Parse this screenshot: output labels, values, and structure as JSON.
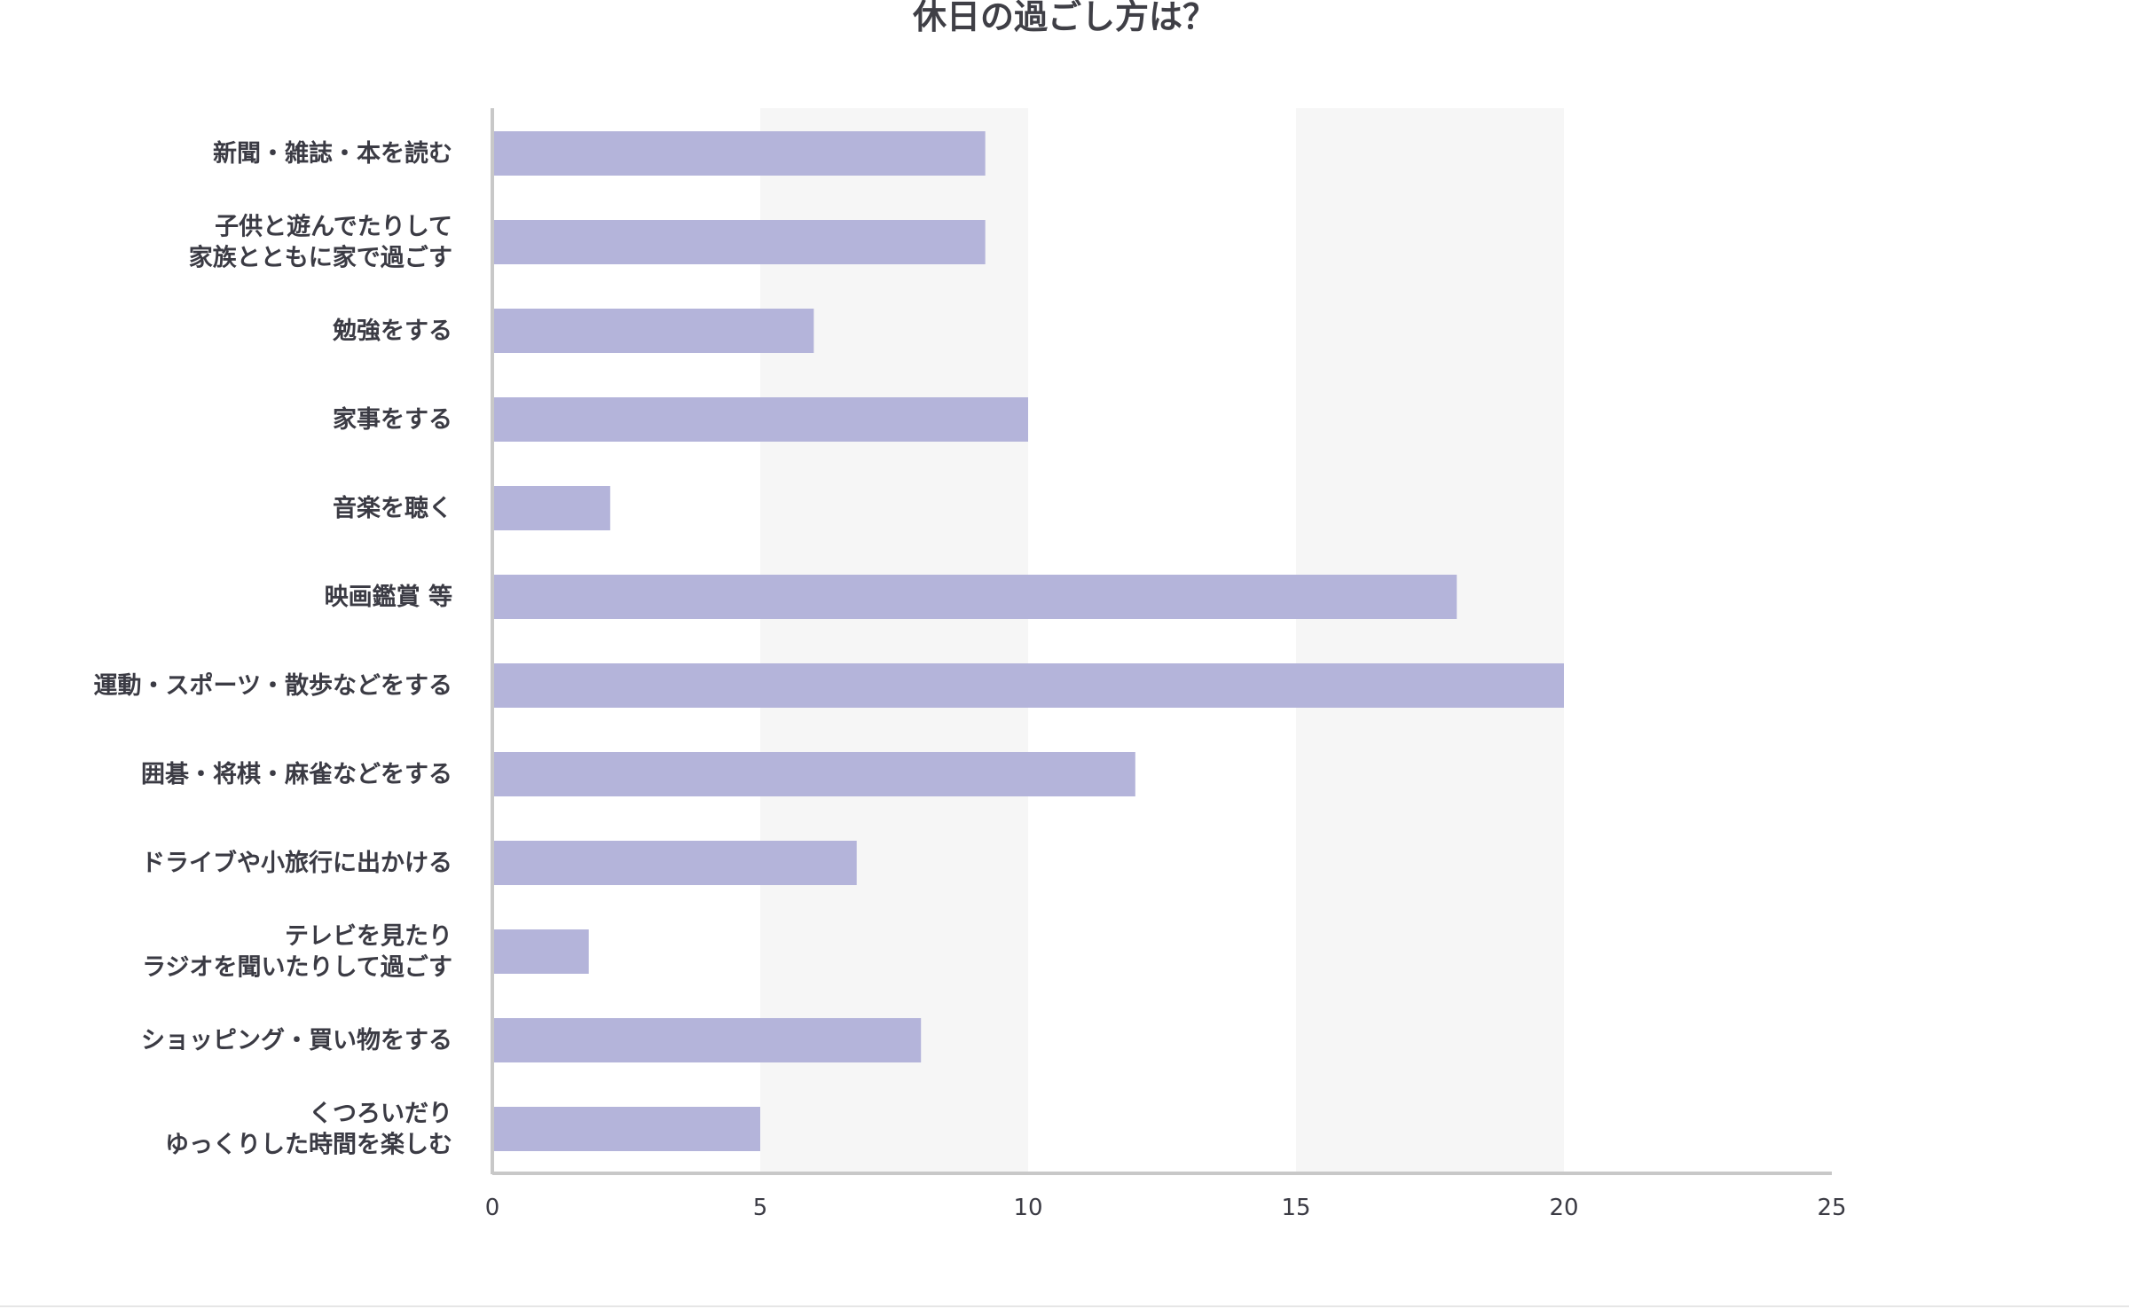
{
  "chart_data": {
    "type": "bar",
    "orientation": "horizontal",
    "title": "休日の過ごし方は？",
    "categories": [
      "新聞・雑誌・本を読む",
      "子供と遊んでたりして\n家族とともに家で過ごす",
      "勉強をする",
      "家事をする",
      "音楽を聴く",
      "映画鑑賞 等",
      "運動・スポーツ・散歩などをする",
      "囲碁・将棋・麻雀などをする",
      "ドライブや小旅行に出かける",
      "テレビを見たり\nラジオを聞いたりして過ごす",
      "ショッピング・買い物をする",
      "くつろいだり\nゆっくりした時間を楽しむ"
    ],
    "values": [
      9.2,
      9.2,
      6,
      10,
      2.2,
      18,
      20,
      12,
      6.8,
      1.8,
      8,
      5
    ],
    "xlim": [
      0,
      25
    ],
    "xticks": [
      "0",
      "5",
      "10",
      "15",
      "20",
      "25"
    ],
    "grid": "alternating bands",
    "legend": "none",
    "colors": {
      "bar": "#b4b4da",
      "band": "#f6f6f6",
      "axis": "#c8c8c8",
      "text": "#3b3b44"
    }
  }
}
